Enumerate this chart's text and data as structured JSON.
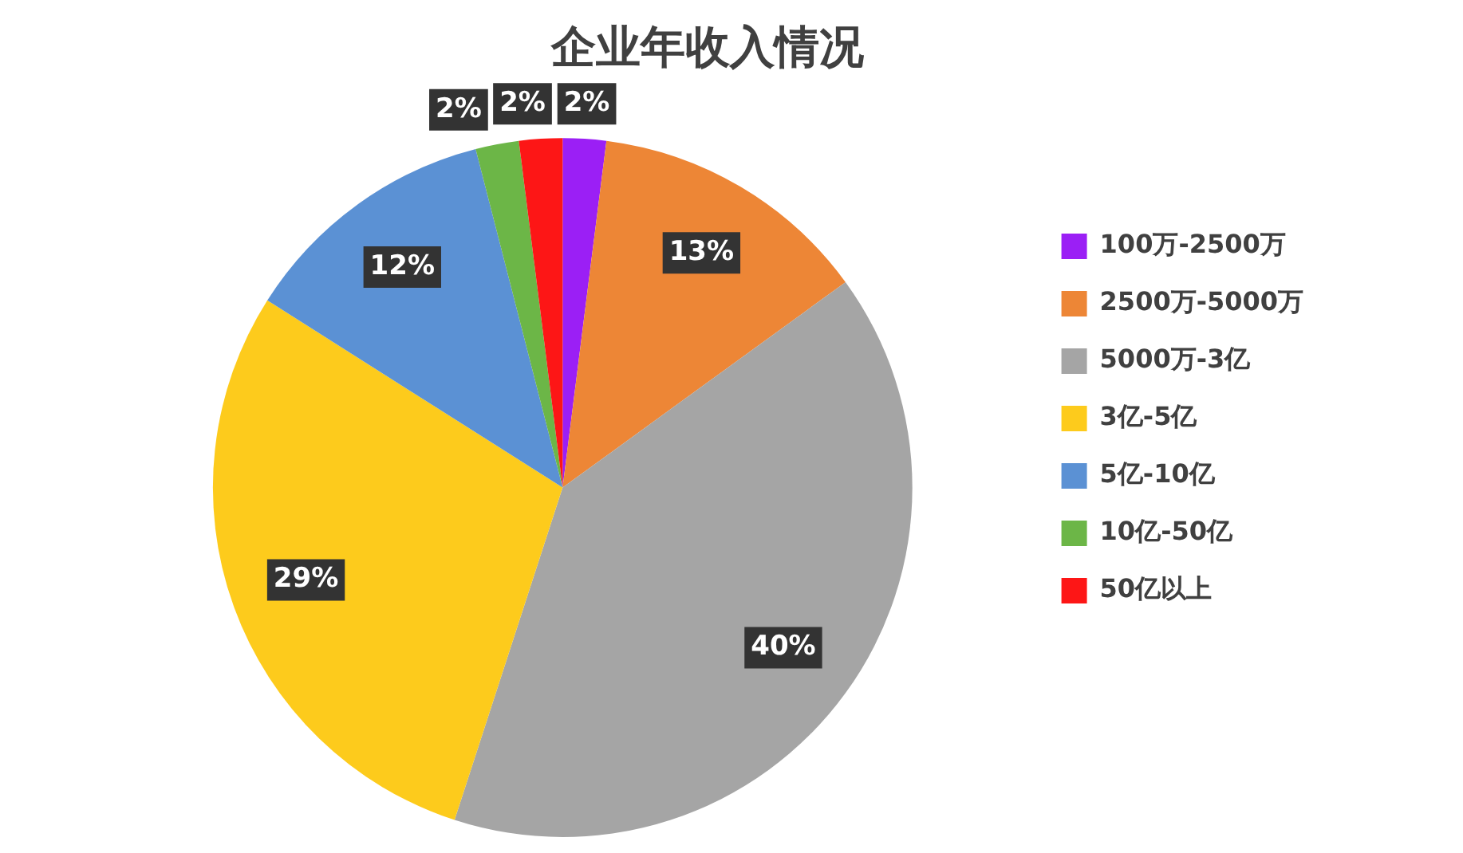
{
  "chart_data": {
    "type": "pie",
    "title": "企业年收入情况",
    "categories": [
      "100万-2500万",
      "2500万-5000万",
      "5000万-3亿",
      "3亿-5亿",
      "5亿-10亿",
      "10亿-50亿",
      "50亿以上"
    ],
    "values": [
      2,
      13,
      40,
      29,
      12,
      2,
      2
    ],
    "colors": [
      "#9b1ff5",
      "#ed8636",
      "#a5a5a5",
      "#fdcb1c",
      "#5b91d4",
      "#6cb647",
      "#fd1616"
    ],
    "value_labels": [
      "2%",
      "13%",
      "40%",
      "29%",
      "12%",
      "2%",
      "2%"
    ],
    "legend": "right"
  }
}
